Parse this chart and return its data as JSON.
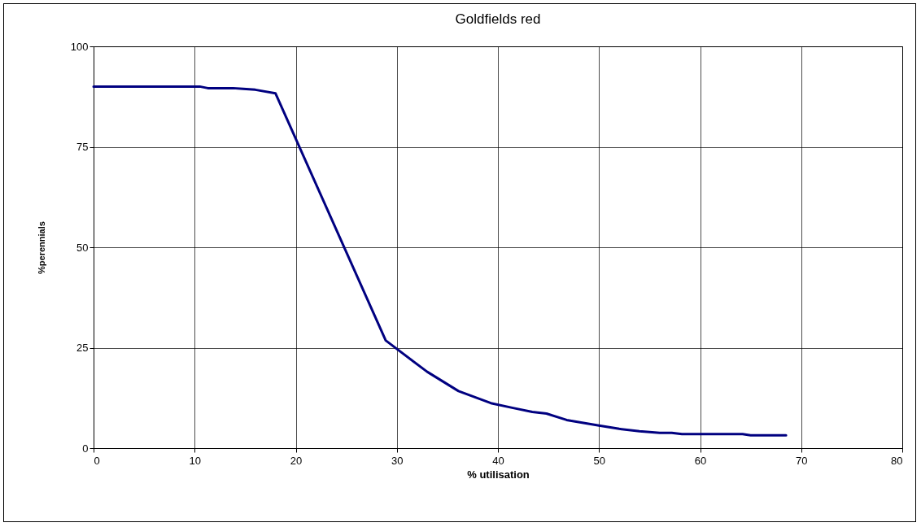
{
  "chart_data": {
    "type": "line",
    "title": "Goldfields red",
    "xlabel": "% utilisation",
    "ylabel": "%perennials",
    "series": [
      {
        "color": "#000080",
        "x": [
          0,
          10.5,
          11.3,
          13.8,
          14.8,
          16,
          18,
          28.9,
          33,
          36.1,
          39.3,
          41.5,
          43.4,
          44.8,
          46.8,
          50,
          52,
          54,
          56,
          57.2,
          58.2,
          64.2,
          65,
          68.5
        ],
        "values": [
          90,
          90,
          89.6,
          89.6,
          89.4,
          89.2,
          88.3,
          26.8,
          19,
          14.2,
          11.2,
          10,
          9,
          8.6,
          7,
          5.6,
          4.8,
          4.2,
          3.8,
          3.8,
          3.5,
          3.5,
          3.2,
          3.2
        ]
      }
    ],
    "xlim": [
      0,
      80
    ],
    "xticks": [
      0,
      10,
      20,
      30,
      40,
      50,
      60,
      70,
      80
    ],
    "ylim": [
      0,
      100
    ],
    "yticks": [
      0,
      25,
      50,
      75,
      100
    ],
    "grid": true,
    "marker": "none",
    "line_style": "solid"
  }
}
